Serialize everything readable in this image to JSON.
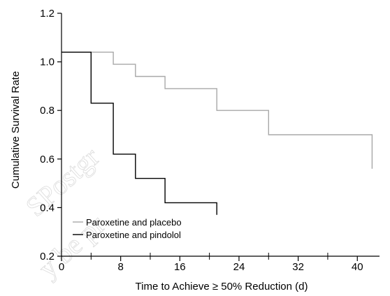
{
  "chart_data": {
    "type": "line",
    "step": true,
    "title": "",
    "xlabel": "Time to Achieve ≥ 50% Reduction (d)",
    "ylabel": "Cumulative Survival Rate",
    "xlim": [
      0,
      43
    ],
    "ylim": [
      0.2,
      1.2
    ],
    "x_major_ticks": [
      0,
      8,
      16,
      24,
      32,
      40
    ],
    "x_minor_ticks": [
      4,
      12,
      20,
      28,
      36
    ],
    "x_tick_labels": [
      "0",
      "8",
      "16",
      "24",
      "32",
      "40"
    ],
    "y_ticks": [
      0.2,
      0.4,
      0.6,
      0.8,
      1.0,
      1.2
    ],
    "y_tick_labels": [
      "0.2",
      "0.4",
      "0.6",
      "0.8",
      "1.0",
      "1.2"
    ],
    "grid": false,
    "legend_position": "bottom-left",
    "series": [
      {
        "name": "Paroxetine and placebo",
        "color": "#a8a8a8",
        "x": [
          0,
          7,
          7,
          10,
          10,
          14,
          14,
          21,
          21,
          28,
          28,
          42,
          42
        ],
        "y": [
          1.04,
          1.04,
          0.99,
          0.99,
          0.94,
          0.94,
          0.89,
          0.89,
          0.8,
          0.8,
          0.7,
          0.7,
          0.56
        ]
      },
      {
        "name": "Paroxetine and pindolol",
        "color": "#000000",
        "x": [
          0,
          4,
          4,
          7,
          7,
          10,
          10,
          14,
          14,
          21,
          21
        ],
        "y": [
          1.04,
          1.04,
          0.83,
          0.83,
          0.62,
          0.62,
          0.52,
          0.52,
          0.42,
          0.42,
          0.37
        ]
      }
    ]
  },
  "watermark": {
    "line1": "SPostgr",
    "line2": "y be pr"
  }
}
